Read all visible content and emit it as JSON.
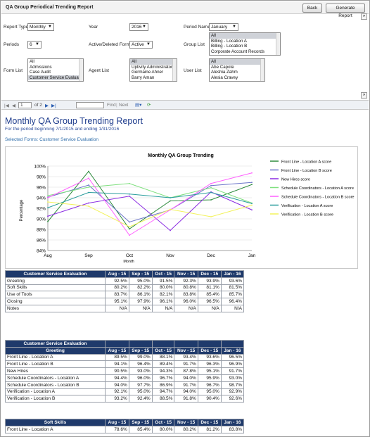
{
  "window": {
    "title": "QA Group Periodical Trending Report",
    "back_label": "Back",
    "generate_label": "Generate Report"
  },
  "params": {
    "report_type_label": "Report Type",
    "report_type": "Monthly",
    "year_label": "Year",
    "year": "2016",
    "period_name_label": "Period Name",
    "period_name": "January",
    "periods_label": "Periods",
    "periods": "6",
    "active_label": "Active/Deleted Forms",
    "active": "Active",
    "group_list_label": "Group List",
    "group_list": [
      "All",
      "Billing - Location A",
      "Billing - Location B",
      "Corporate Account Records"
    ],
    "form_list_label": "Form List",
    "form_list": [
      "All",
      "Admissions",
      "Case Audit",
      "Customer Service Evaluation"
    ],
    "agent_list_label": "Agent List",
    "agent_list": [
      "All",
      "Uptivity Administrator",
      "Germaine Ahner",
      "Barry Aman"
    ],
    "user_list_label": "User List",
    "user_list": [
      "All",
      "Abe Capote",
      "Aleshia Zahm",
      "Alesia Cravey"
    ]
  },
  "toolbar": {
    "page": "1",
    "of": "of 2",
    "find": "Find",
    "next": "Next"
  },
  "report": {
    "title": "Monthly QA Group Trending Report",
    "subtitle": "For the period beginning 7/1/2015 and ending 1/31/2016",
    "selected": "Selected Forms: Customer Service Evaluation"
  },
  "chart_data": {
    "type": "line",
    "title": "Monthly QA Group Trending",
    "xlabel": "Month",
    "ylabel": "Percentage",
    "categories": [
      "Aug",
      "Sep",
      "Oct",
      "Nov",
      "Dec",
      "Jan"
    ],
    "ylim": [
      84,
      100
    ],
    "yticks": [
      "84%",
      "86%",
      "88%",
      "90%",
      "92%",
      "94%",
      "96%",
      "98%",
      "100%"
    ],
    "legend_position": "right",
    "series": [
      {
        "name": "Front Line - Location A score",
        "color": "#2e8b3e",
        "values": [
          89.5,
          99.0,
          88.1,
          93.4,
          93.6,
          96.5
        ]
      },
      {
        "name": "Front Line - Location B score",
        "color": "#6b74c9",
        "values": [
          94.1,
          96.4,
          89.4,
          91.7,
          96.3,
          96.9
        ]
      },
      {
        "name": "New Hires score",
        "color": "#8a2be2",
        "values": [
          90.5,
          93.0,
          94.3,
          87.8,
          95.1,
          91.7
        ]
      },
      {
        "name": "Schedule Coordinators - Location A score",
        "color": "#7fe07f",
        "values": [
          94.4,
          96.0,
          96.7,
          94.0,
          95.9,
          93.0
        ]
      },
      {
        "name": "Schedule Coordinators - Location B score",
        "color": "#ff5fff",
        "values": [
          94.0,
          97.7,
          86.9,
          91.7,
          96.7,
          98.7
        ]
      },
      {
        "name": "Verification - Location A score",
        "color": "#2a9d9d",
        "values": [
          92.1,
          95.0,
          94.7,
          94.0,
          95.0,
          92.9
        ]
      },
      {
        "name": "Verification - Location B score",
        "color": "#f2f25a",
        "values": [
          93.2,
          92.4,
          88.5,
          91.8,
          90.4,
          92.6
        ]
      }
    ]
  },
  "tables": {
    "months": [
      "Aug - 15",
      "Sep - 15",
      "Oct - 15",
      "Nov - 15",
      "Dec - 15",
      "Jan - 16"
    ],
    "t1": {
      "header": "Customer Service Evaluation",
      "rows": [
        {
          "label": "Greeting",
          "values": [
            "92.5%",
            "95.0%",
            "91.5%",
            "92.3%",
            "93.9%",
            "93.6%"
          ]
        },
        {
          "label": "Soft Skills",
          "values": [
            "80.2%",
            "82.2%",
            "80.0%",
            "80.8%",
            "81.1%",
            "81.5%"
          ]
        },
        {
          "label": "Use of Tools",
          "values": [
            "83.7%",
            "86.1%",
            "82.1%",
            "83.8%",
            "85.4%",
            "85.7%"
          ]
        },
        {
          "label": "Closing",
          "values": [
            "95.1%",
            "97.9%",
            "96.1%",
            "96.0%",
            "96.5%",
            "96.4%"
          ]
        },
        {
          "label": "Notes",
          "values": [
            "N/A",
            "N/A",
            "N/A",
            "N/A",
            "N/A",
            "N/A"
          ]
        }
      ]
    },
    "t2": {
      "header": "Customer Service Evaluation",
      "subheader": "Greeting",
      "rows": [
        {
          "label": "Front Line - Location A",
          "values": [
            "89.5%",
            "99.0%",
            "88.1%",
            "93.4%",
            "93.6%",
            "96.5%"
          ]
        },
        {
          "label": "Front Line - Location B",
          "values": [
            "94.1%",
            "96.4%",
            "89.4%",
            "91.7%",
            "96.3%",
            "96.9%"
          ]
        },
        {
          "label": "New Hires",
          "values": [
            "90.5%",
            "93.0%",
            "94.3%",
            "87.8%",
            "95.1%",
            "91.7%"
          ]
        },
        {
          "label": "Schedule Coordinators - Location A",
          "values": [
            "94.4%",
            "96.0%",
            "96.7%",
            "94.0%",
            "95.9%",
            "93.0%"
          ]
        },
        {
          "label": "Schedule Coordinators - Location B",
          "values": [
            "94.0%",
            "97.7%",
            "86.9%",
            "91.7%",
            "96.7%",
            "98.7%"
          ]
        },
        {
          "label": "Verification - Location A",
          "values": [
            "92.1%",
            "95.0%",
            "94.7%",
            "94.0%",
            "95.0%",
            "92.9%"
          ]
        },
        {
          "label": "Verification - Location B",
          "values": [
            "93.2%",
            "92.4%",
            "88.5%",
            "91.8%",
            "90.4%",
            "92.6%"
          ]
        }
      ]
    },
    "t3": {
      "header": "Soft Skills",
      "rows": [
        {
          "label": "Front Line - Location A",
          "values": [
            "78.6%",
            "85.4%",
            "80.0%",
            "80.2%",
            "81.2%",
            "83.8%"
          ]
        }
      ]
    }
  }
}
